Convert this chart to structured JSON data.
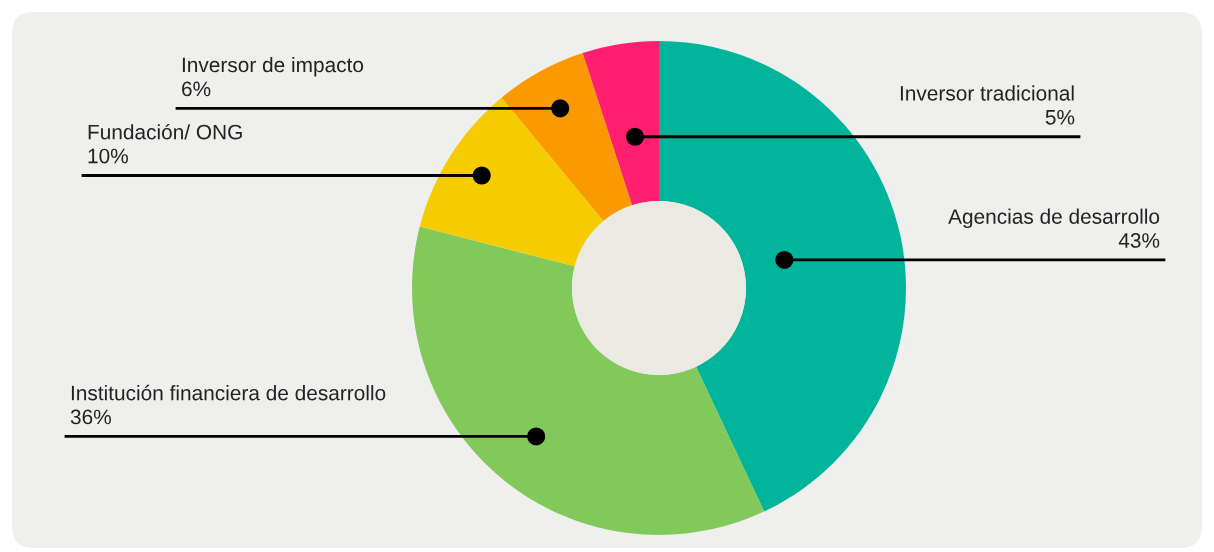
{
  "chart_data": {
    "type": "donut",
    "categories": [
      "Agencias de desarrollo",
      "Institución financiera de desarrollo",
      "Fundación/ ONG",
      "Inversor de impacto",
      "Inversor tradicional"
    ],
    "values": [
      43,
      36,
      10,
      6,
      5
    ],
    "value_labels": [
      "43%",
      "36%",
      "10%",
      "6%",
      "5%"
    ],
    "colors": [
      "#00b59c",
      "#82c95c",
      "#f5cc00",
      "#fa9a00",
      "#ff1f6e"
    ],
    "legend": false
  }
}
